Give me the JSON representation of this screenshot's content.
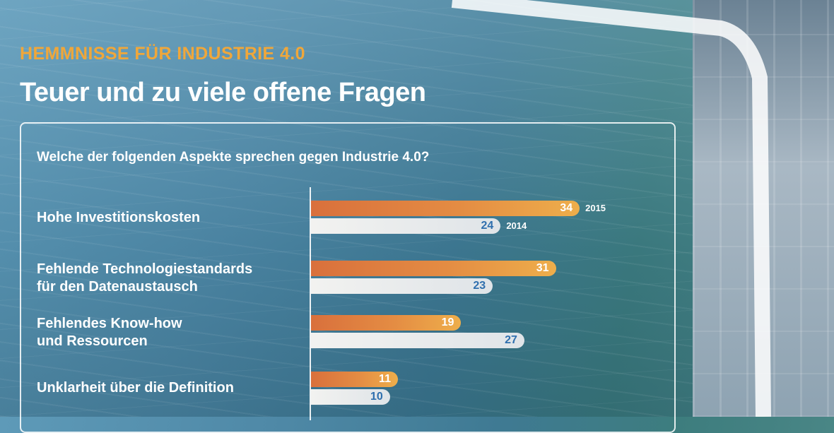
{
  "header": {
    "kicker": "HEMMNISSE FÜR INDUSTRIE 4.0",
    "title": "Teuer und zu viele offene Fragen"
  },
  "chart_data": {
    "type": "bar",
    "orientation": "horizontal",
    "title": "Welche der folgenden Aspekte sprechen gegen Industrie 4.0?",
    "categories": [
      "Hohe Investitionskosten",
      "Fehlende Technologiestandards\nfür den Datenaustausch",
      "Fehlendes Know-how\nund Ressourcen",
      "Unklarheit über die Definition"
    ],
    "series": [
      {
        "name": "2015",
        "values": [
          34,
          31,
          19,
          11
        ],
        "color": "#e48c43"
      },
      {
        "name": "2014",
        "values": [
          24,
          23,
          27,
          10
        ],
        "color": "#e6eaee"
      }
    ],
    "legend": {
      "series_2015_tag": "2015",
      "series_2014_tag": "2014",
      "placement": "inline-first-group"
    },
    "xlim": [
      0,
      34
    ]
  },
  "colors": {
    "accent": "#f0a73a",
    "bar_2015": "#e48c43",
    "bar_2014": "#e6eaee",
    "value_2014": "#2f6fae"
  }
}
